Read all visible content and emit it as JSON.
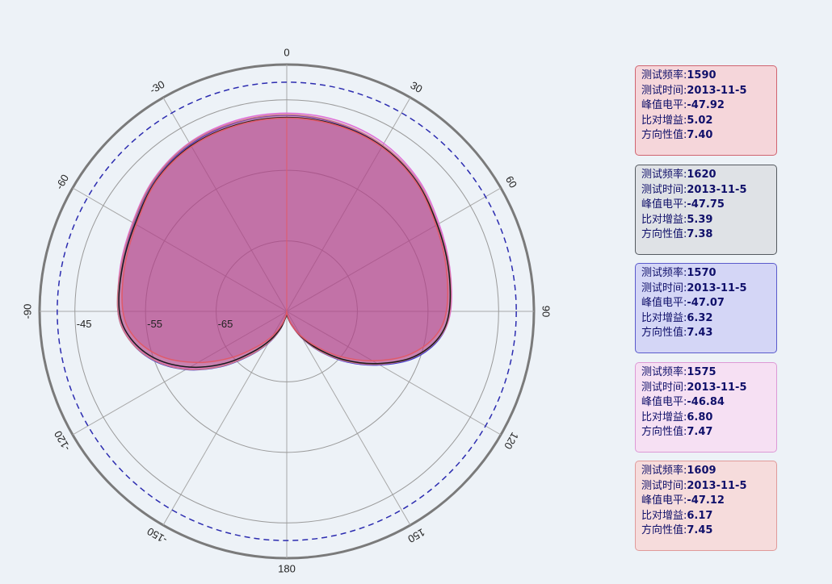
{
  "chart_data": {
    "type": "polar",
    "angle_ticks": [
      0,
      30,
      60,
      90,
      120,
      150,
      180,
      -150,
      -120,
      -90,
      -60,
      -30
    ],
    "radial_tick_labels": [
      "-65",
      "-55",
      "-45"
    ],
    "radial_range": [
      -75,
      -40
    ],
    "reference_circle_dashed": -42.5,
    "grid": true,
    "legend_position": "right",
    "series": [
      {
        "frequency": "1590",
        "test_time": "2013-11-5",
        "peak_level": "-47.92",
        "relative_gain": "5.02",
        "directivity": "7.40",
        "color": "#e05a6a",
        "card_bg": "#f5d6da",
        "card_border": "#d06470",
        "values": [
          {
            "a": 0,
            "r": -47.6
          },
          {
            "a": 15,
            "r": -47.7
          },
          {
            "a": 30,
            "r": -48.1
          },
          {
            "a": 45,
            "r": -49.1
          },
          {
            "a": 60,
            "r": -50.6
          },
          {
            "a": 75,
            "r": -51.6
          },
          {
            "a": 90,
            "r": -52.4
          },
          {
            "a": 100,
            "r": -53.8
          },
          {
            "a": 110,
            "r": -56.8
          },
          {
            "a": 120,
            "r": -61
          },
          {
            "a": 130,
            "r": -65
          },
          {
            "a": 140,
            "r": -68.5
          },
          {
            "a": 150,
            "r": -71
          },
          {
            "a": 160,
            "r": -73
          },
          {
            "a": 170,
            "r": -74.5
          },
          {
            "a": 180,
            "r": -75
          },
          {
            "a": 190,
            "r": -74.5
          },
          {
            "a": 200,
            "r": -73
          },
          {
            "a": 210,
            "r": -71
          },
          {
            "a": 220,
            "r": -68.5
          },
          {
            "a": 230,
            "r": -64.8
          },
          {
            "a": 240,
            "r": -60.5
          },
          {
            "a": 250,
            "r": -56.2
          },
          {
            "a": 260,
            "r": -53.2
          },
          {
            "a": 270,
            "r": -51.8
          },
          {
            "a": 285,
            "r": -51.2
          },
          {
            "a": 300,
            "r": -50.4
          },
          {
            "a": 315,
            "r": -48.9
          },
          {
            "a": 330,
            "r": -48
          },
          {
            "a": 345,
            "r": -47.7
          }
        ]
      },
      {
        "frequency": "1620",
        "test_time": "2013-11-5",
        "peak_level": "-47.75",
        "relative_gain": "5.39",
        "directivity": "7.38",
        "color": "#1a1a1a",
        "card_bg": "#dfe2e6",
        "card_border": "#555a60",
        "values": [
          {
            "a": 0,
            "r": -47.5
          },
          {
            "a": 15,
            "r": -47.6
          },
          {
            "a": 30,
            "r": -48
          },
          {
            "a": 45,
            "r": -49
          },
          {
            "a": 60,
            "r": -50.4
          },
          {
            "a": 75,
            "r": -51.3
          },
          {
            "a": 90,
            "r": -52
          },
          {
            "a": 100,
            "r": -53.2
          },
          {
            "a": 110,
            "r": -56
          },
          {
            "a": 120,
            "r": -60.2
          },
          {
            "a": 130,
            "r": -64.3
          },
          {
            "a": 140,
            "r": -68
          },
          {
            "a": 150,
            "r": -70.8
          },
          {
            "a": 160,
            "r": -73
          },
          {
            "a": 170,
            "r": -74.2
          },
          {
            "a": 180,
            "r": -74.8
          },
          {
            "a": 190,
            "r": -74.2
          },
          {
            "a": 200,
            "r": -72.5
          },
          {
            "a": 210,
            "r": -70.3
          },
          {
            "a": 220,
            "r": -67.5
          },
          {
            "a": 230,
            "r": -63.5
          },
          {
            "a": 240,
            "r": -59.2
          },
          {
            "a": 250,
            "r": -55.3
          },
          {
            "a": 260,
            "r": -52.6
          },
          {
            "a": 270,
            "r": -51.3
          },
          {
            "a": 285,
            "r": -50.9
          },
          {
            "a": 300,
            "r": -50.2
          },
          {
            "a": 315,
            "r": -48.8
          },
          {
            "a": 330,
            "r": -47.9
          },
          {
            "a": 345,
            "r": -47.6
          }
        ]
      },
      {
        "frequency": "1570",
        "test_time": "2013-11-5",
        "peak_level": "-47.07",
        "relative_gain": "6.32",
        "directivity": "7.43",
        "color": "#3a3ad0",
        "card_bg": "#d4d6f6",
        "card_border": "#5a5acc",
        "values": [
          {
            "a": 0,
            "r": -47.2
          },
          {
            "a": 15,
            "r": -47.4
          },
          {
            "a": 30,
            "r": -47.9
          },
          {
            "a": 45,
            "r": -48.9
          },
          {
            "a": 60,
            "r": -50.3
          },
          {
            "a": 75,
            "r": -51.2
          },
          {
            "a": 90,
            "r": -51.9
          },
          {
            "a": 100,
            "r": -53
          },
          {
            "a": 110,
            "r": -55.7
          },
          {
            "a": 120,
            "r": -59.8
          },
          {
            "a": 130,
            "r": -63.8
          },
          {
            "a": 140,
            "r": -67.5
          },
          {
            "a": 150,
            "r": -70.5
          },
          {
            "a": 160,
            "r": -72.8
          },
          {
            "a": 170,
            "r": -74.2
          },
          {
            "a": 180,
            "r": -74.8
          },
          {
            "a": 190,
            "r": -74.2
          },
          {
            "a": 200,
            "r": -72.2
          },
          {
            "a": 210,
            "r": -69.8
          },
          {
            "a": 220,
            "r": -66.8
          },
          {
            "a": 230,
            "r": -62.8
          },
          {
            "a": 240,
            "r": -58.5
          },
          {
            "a": 250,
            "r": -54.8
          },
          {
            "a": 260,
            "r": -52.3
          },
          {
            "a": 270,
            "r": -51.1
          },
          {
            "a": 285,
            "r": -50.8
          },
          {
            "a": 300,
            "r": -50
          },
          {
            "a": 315,
            "r": -48.6
          },
          {
            "a": 330,
            "r": -47.7
          },
          {
            "a": 345,
            "r": -47.3
          }
        ]
      },
      {
        "frequency": "1575",
        "test_time": "2013-11-5",
        "peak_level": "-46.84",
        "relative_gain": "6.80",
        "directivity": "7.47",
        "color": "#e070d8",
        "card_bg": "#f6e0f3",
        "card_border": "#dd99d6",
        "values": [
          {
            "a": 0,
            "r": -46.9
          },
          {
            "a": 15,
            "r": -47
          },
          {
            "a": 30,
            "r": -47.5
          },
          {
            "a": 45,
            "r": -48.6
          },
          {
            "a": 60,
            "r": -50.1
          },
          {
            "a": 75,
            "r": -51.1
          },
          {
            "a": 90,
            "r": -51.8
          },
          {
            "a": 100,
            "r": -53.1
          },
          {
            "a": 110,
            "r": -56
          },
          {
            "a": 120,
            "r": -60
          },
          {
            "a": 130,
            "r": -64
          },
          {
            "a": 140,
            "r": -67.7
          },
          {
            "a": 150,
            "r": -70.6
          },
          {
            "a": 160,
            "r": -72.8
          },
          {
            "a": 170,
            "r": -74.2
          },
          {
            "a": 180,
            "r": -74.8
          },
          {
            "a": 190,
            "r": -74.2
          },
          {
            "a": 200,
            "r": -72.4
          },
          {
            "a": 210,
            "r": -70
          },
          {
            "a": 220,
            "r": -67
          },
          {
            "a": 230,
            "r": -63
          },
          {
            "a": 240,
            "r": -58.8
          },
          {
            "a": 250,
            "r": -55
          },
          {
            "a": 260,
            "r": -52.4
          },
          {
            "a": 270,
            "r": -51.2
          },
          {
            "a": 285,
            "r": -50.6
          },
          {
            "a": 300,
            "r": -49.8
          },
          {
            "a": 315,
            "r": -48.4
          },
          {
            "a": 330,
            "r": -47.4
          },
          {
            "a": 345,
            "r": -47
          }
        ]
      },
      {
        "frequency": "1609",
        "test_time": "2013-11-5",
        "peak_level": "-47.12",
        "relative_gain": "6.17",
        "directivity": "7.45",
        "color": "#d07a88",
        "card_bg": "#f6dcdc",
        "card_border": "#e09a9a",
        "values": [
          {
            "a": 0,
            "r": -47.1
          },
          {
            "a": 15,
            "r": -47.3
          },
          {
            "a": 30,
            "r": -47.8
          },
          {
            "a": 45,
            "r": -48.8
          },
          {
            "a": 60,
            "r": -50.3
          },
          {
            "a": 75,
            "r": -51.2
          },
          {
            "a": 90,
            "r": -51.9
          },
          {
            "a": 100,
            "r": -53.1
          },
          {
            "a": 110,
            "r": -55.9
          },
          {
            "a": 120,
            "r": -60
          },
          {
            "a": 130,
            "r": -64
          },
          {
            "a": 140,
            "r": -67.6
          },
          {
            "a": 150,
            "r": -70.6
          },
          {
            "a": 160,
            "r": -72.8
          },
          {
            "a": 170,
            "r": -74.2
          },
          {
            "a": 180,
            "r": -74.8
          },
          {
            "a": 190,
            "r": -74.2
          },
          {
            "a": 200,
            "r": -72.3
          },
          {
            "a": 210,
            "r": -69.9
          },
          {
            "a": 220,
            "r": -66.9
          },
          {
            "a": 230,
            "r": -62.9
          },
          {
            "a": 240,
            "r": -58.6
          },
          {
            "a": 250,
            "r": -54.9
          },
          {
            "a": 260,
            "r": -52.3
          },
          {
            "a": 270,
            "r": -51.1
          },
          {
            "a": 285,
            "r": -50.7
          },
          {
            "a": 300,
            "r": -49.9
          },
          {
            "a": 315,
            "r": -48.5
          },
          {
            "a": 330,
            "r": -47.5
          },
          {
            "a": 345,
            "r": -47.2
          }
        ]
      }
    ]
  },
  "legend_labels": {
    "frequency": "测试频率:",
    "test_time": "测试时间:",
    "peak_level": "峰值电平:",
    "relative_gain": "比对增益:",
    "directivity": "方向性值:"
  }
}
